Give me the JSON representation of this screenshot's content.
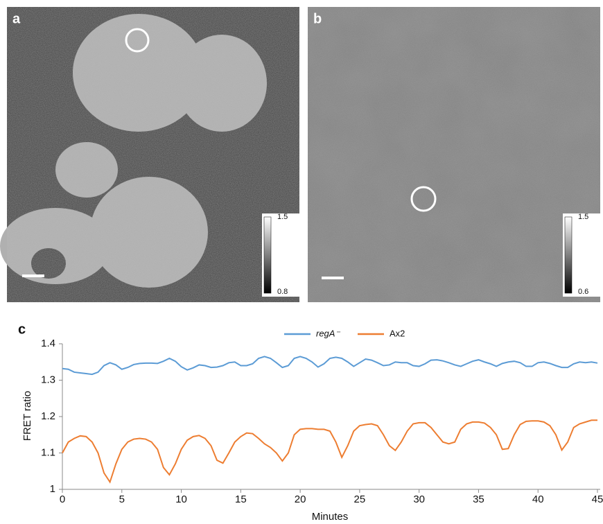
{
  "panels": {
    "a": {
      "label": "a",
      "colorbar": {
        "max": 1.5,
        "min": 0.8
      }
    },
    "b": {
      "label": "b",
      "colorbar": {
        "max": 1.5,
        "min": 0.6
      }
    }
  },
  "chart_data": {
    "type": "line",
    "label": "c",
    "x_label": "Minutes",
    "y_label": "FRET ratio",
    "x": [
      0,
      0.5,
      1,
      1.5,
      2,
      2.5,
      3,
      3.5,
      4,
      4.5,
      5,
      5.5,
      6,
      6.5,
      7,
      7.5,
      8,
      8.5,
      9,
      9.5,
      10,
      10.5,
      11,
      11.5,
      12,
      12.5,
      13,
      13.5,
      14,
      14.5,
      15,
      15.5,
      16,
      16.5,
      17,
      17.5,
      18,
      18.5,
      19,
      19.5,
      20,
      20.5,
      21,
      21.5,
      22,
      22.5,
      23,
      23.5,
      24,
      24.5,
      25,
      25.5,
      26,
      26.5,
      27,
      27.5,
      28,
      28.5,
      29,
      29.5,
      30,
      30.5,
      31,
      31.5,
      32,
      32.5,
      33,
      33.5,
      34,
      34.5,
      35,
      35.5,
      36,
      36.5,
      37,
      37.5,
      38,
      38.5,
      39,
      39.5,
      40,
      40.5,
      41,
      41.5,
      42,
      42.5,
      43,
      43.5,
      44,
      44.5,
      45
    ],
    "series": [
      {
        "name": "regA⁻",
        "color": "#5b9bd5",
        "values": [
          1.332,
          1.33,
          1.322,
          1.32,
          1.318,
          1.316,
          1.322,
          1.34,
          1.348,
          1.342,
          1.33,
          1.335,
          1.343,
          1.346,
          1.347,
          1.347,
          1.346,
          1.352,
          1.36,
          1.352,
          1.337,
          1.328,
          1.334,
          1.342,
          1.34,
          1.335,
          1.336,
          1.34,
          1.348,
          1.35,
          1.34,
          1.34,
          1.345,
          1.36,
          1.365,
          1.36,
          1.348,
          1.335,
          1.34,
          1.36,
          1.365,
          1.36,
          1.35,
          1.336,
          1.345,
          1.36,
          1.363,
          1.36,
          1.35,
          1.338,
          1.348,
          1.358,
          1.355,
          1.348,
          1.34,
          1.342,
          1.35,
          1.348,
          1.348,
          1.34,
          1.338,
          1.345,
          1.355,
          1.356,
          1.353,
          1.348,
          1.342,
          1.338,
          1.345,
          1.352,
          1.356,
          1.35,
          1.345,
          1.338,
          1.346,
          1.35,
          1.352,
          1.348,
          1.338,
          1.338,
          1.348,
          1.35,
          1.346,
          1.34,
          1.335,
          1.335,
          1.345,
          1.35,
          1.348,
          1.35,
          1.347
        ]
      },
      {
        "name": "Ax2",
        "color": "#ed7d31",
        "values": [
          1.1,
          1.13,
          1.14,
          1.147,
          1.145,
          1.13,
          1.1,
          1.045,
          1.02,
          1.07,
          1.11,
          1.13,
          1.138,
          1.14,
          1.138,
          1.13,
          1.11,
          1.06,
          1.04,
          1.07,
          1.11,
          1.135,
          1.145,
          1.148,
          1.14,
          1.12,
          1.08,
          1.072,
          1.1,
          1.13,
          1.145,
          1.155,
          1.153,
          1.14,
          1.125,
          1.115,
          1.1,
          1.078,
          1.1,
          1.15,
          1.165,
          1.167,
          1.167,
          1.165,
          1.165,
          1.16,
          1.13,
          1.088,
          1.12,
          1.16,
          1.175,
          1.178,
          1.18,
          1.175,
          1.15,
          1.12,
          1.107,
          1.13,
          1.16,
          1.18,
          1.183,
          1.183,
          1.17,
          1.15,
          1.13,
          1.125,
          1.13,
          1.165,
          1.18,
          1.185,
          1.185,
          1.182,
          1.17,
          1.15,
          1.11,
          1.112,
          1.15,
          1.178,
          1.187,
          1.188,
          1.188,
          1.185,
          1.175,
          1.15,
          1.108,
          1.13,
          1.17,
          1.18,
          1.185,
          1.19,
          1.19
        ]
      }
    ],
    "xlim": [
      0,
      45
    ],
    "xticks": [
      0,
      5,
      10,
      15,
      20,
      25,
      30,
      35,
      40,
      45
    ],
    "ylim": [
      1,
      1.4
    ],
    "yticks": [
      1,
      1.1,
      1.2,
      1.3,
      1.4
    ],
    "grid": false
  }
}
